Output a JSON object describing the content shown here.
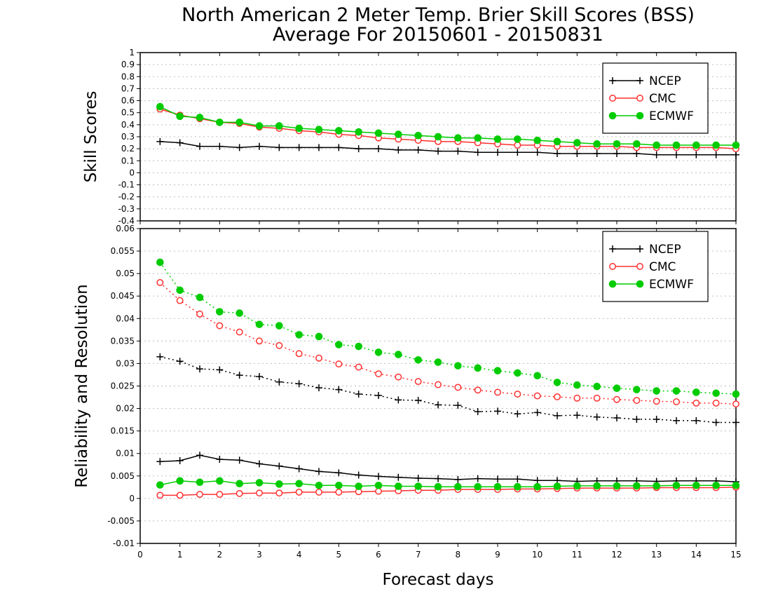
{
  "title_line1": "North American 2 Meter Temp. Brier Skill Scores (BSS)",
  "title_line2": "Average For 20150601 - 20150831",
  "xlabel": "Forecast days",
  "chart_data": [
    {
      "type": "line",
      "ylabel": "Skill Scores",
      "xlim": [
        0,
        15
      ],
      "ylim": [
        -0.4,
        1
      ],
      "xticks": [
        "0",
        "1",
        "2",
        "3",
        "4",
        "5",
        "6",
        "7",
        "8",
        "9",
        "10",
        "11",
        "12",
        "13",
        "14",
        "15"
      ],
      "yticks": [
        "-0.4",
        "-0.3",
        "-0.2",
        "-0.1",
        "0",
        "0.1",
        "0.2",
        "0.3",
        "0.4",
        "0.5",
        "0.6",
        "0.7",
        "0.8",
        "0.9",
        "1"
      ],
      "grid": true,
      "legend_position": "top-right",
      "x": [
        0.5,
        1,
        1.5,
        2,
        2.5,
        3,
        3.5,
        4,
        4.5,
        5,
        5.5,
        6,
        6.5,
        7,
        7.5,
        8,
        8.5,
        9,
        9.5,
        10,
        10.5,
        11,
        11.5,
        12,
        12.5,
        13,
        13.5,
        14,
        14.5,
        15
      ],
      "series": [
        {
          "name": "NCEP",
          "color": "#000000",
          "marker": "plus",
          "style": "solid",
          "values": [
            0.26,
            0.25,
            0.22,
            0.22,
            0.21,
            0.22,
            0.21,
            0.21,
            0.21,
            0.21,
            0.2,
            0.2,
            0.19,
            0.19,
            0.18,
            0.18,
            0.17,
            0.17,
            0.17,
            0.17,
            0.16,
            0.16,
            0.16,
            0.16,
            0.16,
            0.15,
            0.15,
            0.15,
            0.15,
            0.15
          ]
        },
        {
          "name": "CMC",
          "color": "#ff3030",
          "marker": "open-circle",
          "style": "solid",
          "values": [
            0.53,
            0.48,
            0.45,
            0.42,
            0.41,
            0.38,
            0.37,
            0.35,
            0.34,
            0.32,
            0.31,
            0.29,
            0.28,
            0.27,
            0.26,
            0.26,
            0.25,
            0.24,
            0.23,
            0.23,
            0.22,
            0.22,
            0.22,
            0.22,
            0.21,
            0.21,
            0.21,
            0.21,
            0.21,
            0.2
          ]
        },
        {
          "name": "ECMWF",
          "color": "#00cc00",
          "marker": "filled-circle",
          "style": "solid",
          "values": [
            0.55,
            0.47,
            0.46,
            0.42,
            0.42,
            0.39,
            0.39,
            0.37,
            0.36,
            0.35,
            0.34,
            0.33,
            0.32,
            0.31,
            0.3,
            0.29,
            0.29,
            0.28,
            0.28,
            0.27,
            0.26,
            0.25,
            0.24,
            0.24,
            0.24,
            0.23,
            0.23,
            0.23,
            0.23,
            0.23
          ]
        }
      ]
    },
    {
      "type": "line",
      "ylabel": "Reliability and Resolution",
      "xlim": [
        0,
        15
      ],
      "ylim": [
        -0.01,
        0.06
      ],
      "xticks": [
        "0",
        "1",
        "2",
        "3",
        "4",
        "5",
        "6",
        "7",
        "8",
        "9",
        "10",
        "11",
        "12",
        "13",
        "14",
        "15"
      ],
      "yticks": [
        "-0.01",
        "-0.005",
        "0",
        "0.005",
        "0.01",
        "0.015",
        "0.02",
        "0.025",
        "0.03",
        "0.035",
        "0.04",
        "0.045",
        "0.05",
        "0.055",
        "0.06"
      ],
      "grid": true,
      "legend_position": "top-right",
      "x": [
        0.5,
        1,
        1.5,
        2,
        2.5,
        3,
        3.5,
        4,
        4.5,
        5,
        5.5,
        6,
        6.5,
        7,
        7.5,
        8,
        8.5,
        9,
        9.5,
        10,
        10.5,
        11,
        11.5,
        12,
        12.5,
        13,
        13.5,
        14,
        14.5,
        15
      ],
      "series": [
        {
          "name": "NCEP",
          "color": "#000000",
          "marker": "plus",
          "style": "dotted",
          "values": [
            0.0315,
            0.0305,
            0.0288,
            0.0286,
            0.0274,
            0.0271,
            0.0259,
            0.0255,
            0.0246,
            0.0242,
            0.0232,
            0.0229,
            0.0219,
            0.0218,
            0.0208,
            0.0207,
            0.0193,
            0.0194,
            0.0188,
            0.0191,
            0.0184,
            0.0185,
            0.0181,
            0.0179,
            0.0176,
            0.0176,
            0.0173,
            0.0173,
            0.0169,
            0.0169
          ]
        },
        {
          "name": "NCEP",
          "color": "#000000",
          "marker": "plus",
          "style": "solid",
          "values": [
            0.0082,
            0.0084,
            0.0096,
            0.0087,
            0.0085,
            0.0077,
            0.0072,
            0.0066,
            0.006,
            0.0057,
            0.0052,
            0.0049,
            0.0047,
            0.0045,
            0.0044,
            0.0042,
            0.0044,
            0.0043,
            0.0043,
            0.004,
            0.004,
            0.0038,
            0.0039,
            0.0039,
            0.0039,
            0.0038,
            0.0039,
            0.0039,
            0.0039,
            0.0037
          ]
        },
        {
          "name": "CMC",
          "color": "#ff3030",
          "marker": "open-circle",
          "style": "dotted",
          "values": [
            0.048,
            0.044,
            0.041,
            0.0384,
            0.037,
            0.035,
            0.034,
            0.0322,
            0.0312,
            0.0299,
            0.0292,
            0.0277,
            0.027,
            0.026,
            0.0253,
            0.0247,
            0.0241,
            0.0236,
            0.0232,
            0.0228,
            0.0226,
            0.0223,
            0.0223,
            0.022,
            0.0218,
            0.0216,
            0.0215,
            0.0212,
            0.0212,
            0.021
          ]
        },
        {
          "name": "CMC",
          "color": "#ff3030",
          "marker": "open-circle",
          "style": "solid",
          "values": [
            0.0007,
            0.0007,
            0.0009,
            0.0009,
            0.0011,
            0.0012,
            0.0012,
            0.0014,
            0.0014,
            0.0014,
            0.0015,
            0.0016,
            0.0017,
            0.0018,
            0.0018,
            0.002,
            0.002,
            0.002,
            0.0021,
            0.0021,
            0.0022,
            0.0023,
            0.0023,
            0.0023,
            0.0023,
            0.0024,
            0.0024,
            0.0024,
            0.0024,
            0.0025
          ]
        },
        {
          "name": "ECMWF",
          "color": "#00cc00",
          "marker": "filled-circle",
          "style": "dotted",
          "values": [
            0.0525,
            0.0463,
            0.0447,
            0.0415,
            0.0412,
            0.0387,
            0.0384,
            0.0364,
            0.036,
            0.0342,
            0.0338,
            0.0325,
            0.032,
            0.0308,
            0.0303,
            0.0295,
            0.029,
            0.0284,
            0.0279,
            0.0273,
            0.0258,
            0.0252,
            0.0249,
            0.0245,
            0.0242,
            0.0239,
            0.0239,
            0.0236,
            0.0234,
            0.0232
          ]
        },
        {
          "name": "ECMWF",
          "color": "#00cc00",
          "marker": "filled-circle",
          "style": "solid",
          "values": [
            0.003,
            0.0039,
            0.0036,
            0.0039,
            0.0033,
            0.0035,
            0.0032,
            0.0033,
            0.0029,
            0.0029,
            0.0027,
            0.0029,
            0.0027,
            0.0027,
            0.0026,
            0.0026,
            0.0026,
            0.0026,
            0.0026,
            0.0026,
            0.0027,
            0.0028,
            0.0028,
            0.0028,
            0.0028,
            0.0028,
            0.0029,
            0.0029,
            0.0029,
            0.0029
          ]
        }
      ]
    }
  ]
}
